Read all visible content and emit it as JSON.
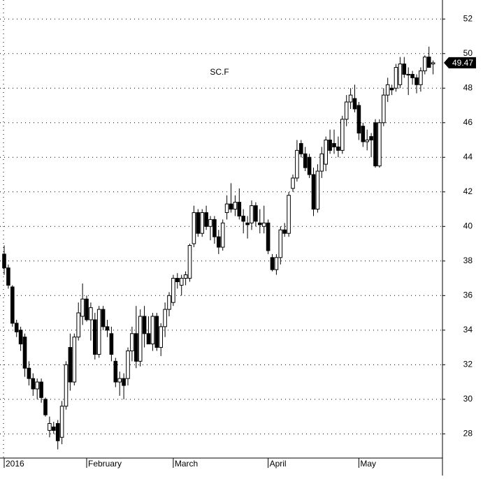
{
  "chart_data": {
    "type": "candlestick",
    "title": "SC.F",
    "categories": [
      "2016",
      null,
      null,
      null,
      null,
      null,
      null,
      null,
      null,
      null,
      null,
      null,
      null,
      null,
      null,
      null,
      null,
      null,
      null,
      null,
      "February",
      null,
      null,
      null,
      null,
      null,
      null,
      null,
      null,
      null,
      null,
      null,
      null,
      null,
      null,
      null,
      null,
      null,
      null,
      null,
      null,
      "March",
      null,
      null,
      null,
      null,
      null,
      null,
      null,
      null,
      null,
      null,
      null,
      null,
      null,
      null,
      null,
      null,
      null,
      null,
      null,
      null,
      null,
      null,
      "April",
      null,
      null,
      null,
      null,
      null,
      null,
      null,
      null,
      null,
      null,
      null,
      null,
      null,
      null,
      null,
      null,
      null,
      null,
      null,
      null,
      null,
      "May",
      null,
      null,
      null,
      null,
      null,
      null,
      null,
      null,
      null,
      null,
      null,
      null,
      null,
      null,
      null,
      null,
      null,
      null
    ],
    "open": [
      38.4,
      37.6,
      36.5,
      34.4,
      34.0,
      33.6,
      31.8,
      31.2,
      30.6,
      31.0,
      30.0,
      28.2,
      28.4,
      28.6,
      27.8,
      29.6,
      33.0,
      31.0,
      33.6,
      34.8,
      35.8,
      34.6,
      34.6,
      32.6,
      35.2,
      34.2,
      33.8,
      32.2,
      31.0,
      31.2,
      31.2,
      32.8,
      33.8,
      32.2,
      34.8,
      33.8,
      33.2,
      34.8,
      33.0,
      34.2,
      35.2,
      35.6,
      37.0,
      36.6,
      37.0,
      37.0,
      39.0,
      40.8,
      39.6,
      40.8,
      40.0,
      40.4,
      39.4,
      38.8,
      40.8,
      41.3,
      41.0,
      41.4,
      40.6,
      40.2,
      40.2,
      41.2,
      40.2,
      40.0,
      40.2,
      38.2,
      37.5,
      38.2,
      39.8,
      39.6,
      42.2,
      42.8,
      44.8,
      44.2,
      44.0,
      43.0,
      41.0,
      43.2,
      43.6,
      45.0,
      44.8,
      44.6,
      44.4,
      46.2,
      47.2,
      47.4,
      47.0,
      45.8,
      44.9,
      45.2,
      46.0,
      43.5,
      46.0,
      47.6,
      48.0,
      48.0,
      48.2,
      49.4,
      48.8,
      48.8,
      48.6,
      48.2,
      49.0,
      49.8,
      49.4
    ],
    "high": [
      38.9,
      37.8,
      36.6,
      34.6,
      34.2,
      33.8,
      32.2,
      31.5,
      31.2,
      31.2,
      30.1,
      29.0,
      28.7,
      28.8,
      29.9,
      32.2,
      33.8,
      33.8,
      35.6,
      36.7,
      36.0,
      35.6,
      35.0,
      35.4,
      35.4,
      34.6,
      34.2,
      32.4,
      31.6,
      31.5,
      33.0,
      34.2,
      35.4,
      35.2,
      35.4,
      34.8,
      35.0,
      35.0,
      34.4,
      35.6,
      36.2,
      37.2,
      37.3,
      37.2,
      37.4,
      39.0,
      41.2,
      41.0,
      41.0,
      41.2,
      40.6,
      40.6,
      39.8,
      40.4,
      41.8,
      42.5,
      41.8,
      42.2,
      41.0,
      40.6,
      41.5,
      41.4,
      41.0,
      41.2,
      40.4,
      38.4,
      38.4,
      40.0,
      40.2,
      42.0,
      43.0,
      45.0,
      45.0,
      44.6,
      44.2,
      43.4,
      43.6,
      44.6,
      45.2,
      45.6,
      45.6,
      45.2,
      46.4,
      47.6,
      48.0,
      48.2,
      47.2,
      46.0,
      45.6,
      45.4,
      46.2,
      46.2,
      48.0,
      48.6,
      48.2,
      49.4,
      49.8,
      49.8,
      49.2,
      49.0,
      48.8,
      49.2,
      49.9,
      50.4,
      49.6
    ],
    "low": [
      37.2,
      36.4,
      34.2,
      33.6,
      32.8,
      31.3,
      30.8,
      30.2,
      30.0,
      29.8,
      29.0,
      27.8,
      28.0,
      27.1,
      27.4,
      29.4,
      30.5,
      30.8,
      33.4,
      34.3,
      34.5,
      33.4,
      32.3,
      32.4,
      34.0,
      33.6,
      32.2,
      30.7,
      30.2,
      30.0,
      30.8,
      32.2,
      31.8,
      31.9,
      33.0,
      33.2,
      32.8,
      32.8,
      32.5,
      33.6,
      34.8,
      35.4,
      36.4,
      36.0,
      36.6,
      36.8,
      38.8,
      39.4,
      39.4,
      39.8,
      39.2,
      39.0,
      38.4,
      38.6,
      40.4,
      40.8,
      40.6,
      40.4,
      39.6,
      39.3,
      39.8,
      40.0,
      39.6,
      39.6,
      38.4,
      37.4,
      37.2,
      37.8,
      39.4,
      39.4,
      42.0,
      42.6,
      44.0,
      43.2,
      42.8,
      40.6,
      40.8,
      42.8,
      43.2,
      44.2,
      44.2,
      44.0,
      44.2,
      45.8,
      46.8,
      46.6,
      45.0,
      44.6,
      44.4,
      44.0,
      43.4,
      43.4,
      45.8,
      47.2,
      47.6,
      47.8,
      48.0,
      48.6,
      47.6,
      48.2,
      47.7,
      47.8,
      48.8,
      49.2,
      48.8
    ],
    "close": [
      37.6,
      36.6,
      34.4,
      33.9,
      33.2,
      31.8,
      31.2,
      30.6,
      31.0,
      30.1,
      29.1,
      28.6,
      28.2,
      27.6,
      29.6,
      32.0,
      31.0,
      33.6,
      35.0,
      35.8,
      34.6,
      35.3,
      32.6,
      35.2,
      34.2,
      34.0,
      32.6,
      31.0,
      31.2,
      30.8,
      32.8,
      33.8,
      32.2,
      34.8,
      33.8,
      33.2,
      34.8,
      33.0,
      34.2,
      35.2,
      36.0,
      37.0,
      36.8,
      37.0,
      37.2,
      38.9,
      40.8,
      39.6,
      40.8,
      40.0,
      40.4,
      39.4,
      38.8,
      40.2,
      41.3,
      41.0,
      41.4,
      40.6,
      40.3,
      40.1,
      41.2,
      40.3,
      40.1,
      40.2,
      38.6,
      37.5,
      38.2,
      39.8,
      39.6,
      41.8,
      42.8,
      44.4,
      44.2,
      43.4,
      43.0,
      41.0,
      43.2,
      44.2,
      45.0,
      44.4,
      44.6,
      44.4,
      46.2,
      47.2,
      47.6,
      46.8,
      45.4,
      44.9,
      45.0,
      45.0,
      43.5,
      46.0,
      47.6,
      48.2,
      47.9,
      49.2,
      49.4,
      48.8,
      48.8,
      48.6,
      48.2,
      49.0,
      49.8,
      49.2,
      49.47
    ],
    "up_color": "#ffffff",
    "down_color": "#000000",
    "last_price": 49.47,
    "ylim": [
      26.6,
      53.1
    ],
    "yticks": [
      28,
      30,
      32,
      34,
      36,
      38,
      40,
      42,
      44,
      46,
      48,
      50,
      52
    ],
    "grid": true
  }
}
